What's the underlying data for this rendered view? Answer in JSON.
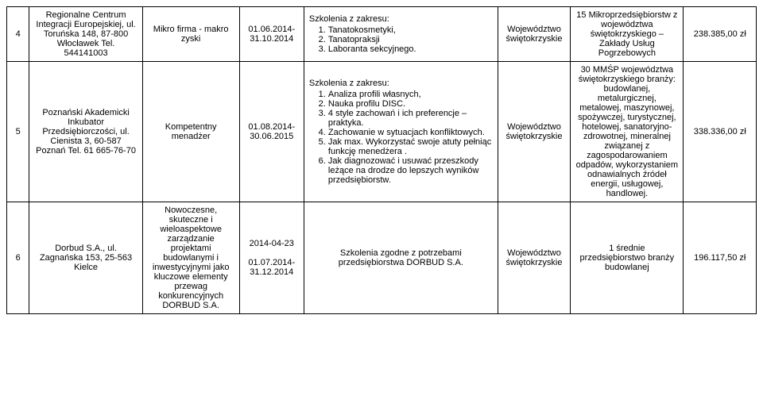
{
  "rows": [
    {
      "num": "4",
      "org": "Regionalne Centrum Integracji Europejskiej, ul. Toruńska 148, 87-800 Włocławek Tel. 544141003",
      "project": "Mikro firma - makro zyski",
      "dates": "01.06.2014- 31.10.2014",
      "desc_label": "Szkolenia z zakresu:",
      "desc_items": [
        "Tanatokosmetyki,",
        "Tanatopraksji",
        "Laboranta sekcyjnego."
      ],
      "region": "Województwo świętokrzyskie",
      "target": "15 Mikroprzedsiębiorstw z województwa świętokrzyskiego – Zakłady Usług Pogrzebowych",
      "amount": "238.385,00 zł"
    },
    {
      "num": "5",
      "org": "Poznański Akademicki Inkubator Przedsiębiorczości, ul. Cienista 3, 60-587 Poznań Tel. 61 665-76-70",
      "project": "Kompetentny menadżer",
      "dates": "01.08.2014- 30.06.2015",
      "desc_label": "Szkolenia z zakresu:",
      "desc_items": [
        "Analiza profili własnych,",
        "Nauka profilu DISC.",
        "4 style zachowań i ich preferencje – praktyka.",
        "Zachowanie w sytuacjach konfliktowych.",
        "Jak max. Wykorzystać swoje atuty pełniąc funkcję menedżera .",
        "Jak diagnozować i usuwać przeszkody leżące na drodze do lepszych wyników przedsiębiorstw."
      ],
      "region": "Województwo świętokrzyskie",
      "target": "30 MMŚP województwa świętokrzyskiego branży: budowlanej, metalurgicznej, metalowej, maszynowej, spożywczej, turystycznej, hotelowej, sanatoryjno-zdrowotnej, mineralnej związanej z zagospodarowaniem odpadów, wykorzystaniem odnawialnych źródeł energii, usługowej, handlowej.",
      "amount": "338.336,00 zł"
    },
    {
      "num": "6",
      "org": "Dorbud S.A., ul. Zagnańska 153, 25-563 Kielce",
      "project": "Nowoczesne, skuteczne i wieloaspektowe zarządzanie projektami budowlanymi i inwestycyjnymi jako kluczowe elementy przewag konkurencyjnych DORBUD S.A.",
      "dates": "2014-04-23\n\n01.07.2014- 31.12.2014",
      "desc_plain": "Szkolenia zgodne z  potrzebami przedsiębiorstwa DORBUD S.A.",
      "region": "Województwo świętokrzyskie",
      "target": "1 średnie przedsiębiorstwo branży budowlanej",
      "amount": "196.117,50 zł"
    }
  ]
}
